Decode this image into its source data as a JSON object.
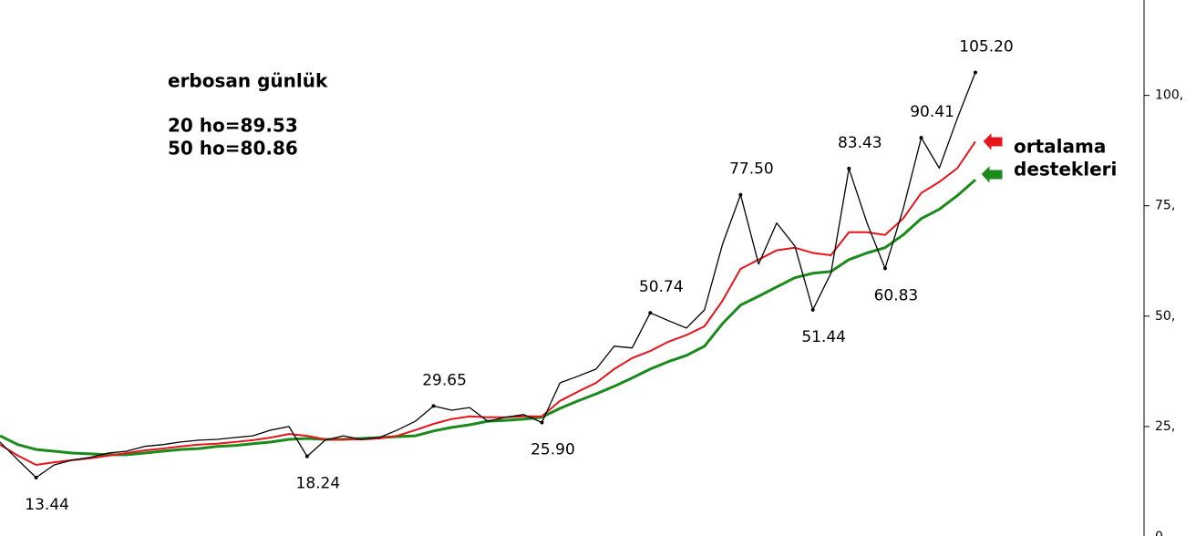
{
  "chart_data": {
    "type": "line",
    "title": "erbosan günlük",
    "annotations": [
      "20 ho=89.53",
      "50 ho=80.86"
    ],
    "side_note": [
      "ortalama",
      "destekleri"
    ],
    "categories": [
      null,
      null,
      null,
      null,
      null,
      null,
      null,
      null,
      null,
      null,
      null,
      null,
      null,
      null,
      null,
      null,
      null,
      null,
      null,
      null,
      null,
      null,
      null,
      null,
      null,
      null,
      null,
      null,
      null,
      null,
      null,
      null,
      null,
      null,
      null,
      null,
      null,
      null,
      null,
      null,
      null,
      null,
      null,
      null,
      null,
      null,
      null,
      null,
      null,
      null,
      null,
      null,
      null,
      null,
      null
    ],
    "series": [
      {
        "color": "#000000",
        "values": [
          21.5,
          17.4,
          13.44,
          16.3,
          17.4,
          18.0,
          19.0,
          19.4,
          20.5,
          20.9,
          21.5,
          21.9,
          22.1,
          22.5,
          22.9,
          24.2,
          25.0,
          18.24,
          21.9,
          22.9,
          22.1,
          22.5,
          24.2,
          26.2,
          29.65,
          28.7,
          29.3,
          26.2,
          27.1,
          27.7,
          25.9,
          34.9,
          36.4,
          38.0,
          43.2,
          42.8,
          50.74,
          49.0,
          47.3,
          51.4,
          66.3,
          77.5,
          61.8,
          71.1,
          65.9,
          51.44,
          59.7,
          83.43,
          71.1,
          60.83,
          74.2,
          90.41,
          83.5,
          94.8,
          105.2
        ],
        "value_labels": [
          null,
          null,
          "13.44",
          null,
          null,
          null,
          null,
          null,
          null,
          null,
          null,
          null,
          null,
          null,
          null,
          null,
          null,
          "18.24",
          null,
          null,
          null,
          null,
          null,
          null,
          "29.65",
          null,
          null,
          null,
          null,
          null,
          "25.90",
          null,
          null,
          null,
          null,
          null,
          "50.74",
          null,
          null,
          null,
          null,
          "77.50",
          null,
          null,
          null,
          "51.44",
          null,
          "83.43",
          null,
          "60.83",
          null,
          "90.41",
          null,
          null,
          "105.20"
        ]
      },
      {
        "color": "#e8141c",
        "values": [
          20.9,
          18.4,
          16.3,
          16.9,
          17.4,
          17.8,
          18.4,
          19.0,
          19.6,
          20.0,
          20.5,
          20.9,
          21.1,
          21.5,
          21.9,
          22.5,
          23.3,
          22.9,
          22.1,
          22.1,
          22.1,
          22.3,
          22.9,
          24.2,
          25.6,
          26.7,
          27.3,
          27.1,
          27.1,
          27.3,
          27.3,
          30.8,
          32.9,
          34.9,
          38.0,
          40.5,
          42.1,
          44.2,
          45.7,
          47.7,
          53.5,
          60.7,
          62.8,
          64.9,
          65.5,
          64.3,
          63.8,
          69.0,
          69.0,
          68.4,
          72.1,
          77.9,
          80.4,
          83.5,
          89.53
        ]
      },
      {
        "color": "#1a8a1a",
        "values": [
          22.9,
          20.9,
          19.8,
          19.4,
          19.0,
          18.8,
          18.6,
          18.6,
          19.0,
          19.4,
          19.8,
          20.0,
          20.5,
          20.7,
          21.1,
          21.5,
          22.1,
          22.3,
          22.1,
          22.1,
          22.3,
          22.5,
          22.7,
          22.9,
          24.0,
          24.8,
          25.4,
          26.2,
          26.4,
          26.7,
          27.1,
          29.1,
          30.8,
          32.4,
          34.1,
          36.0,
          38.0,
          39.7,
          41.1,
          43.2,
          48.3,
          52.5,
          54.5,
          56.6,
          58.7,
          59.7,
          60.1,
          62.8,
          64.3,
          65.5,
          68.4,
          72.1,
          74.2,
          77.3,
          80.86
        ]
      }
    ],
    "ylim": [
      0,
      121.6
    ],
    "yticks": [
      {
        "value": 0,
        "label": "0,"
      },
      {
        "value": 25,
        "label": "25,"
      },
      {
        "value": 50,
        "label": "50,"
      },
      {
        "value": 75,
        "label": "75,"
      },
      {
        "value": 100,
        "label": "100,"
      }
    ]
  }
}
